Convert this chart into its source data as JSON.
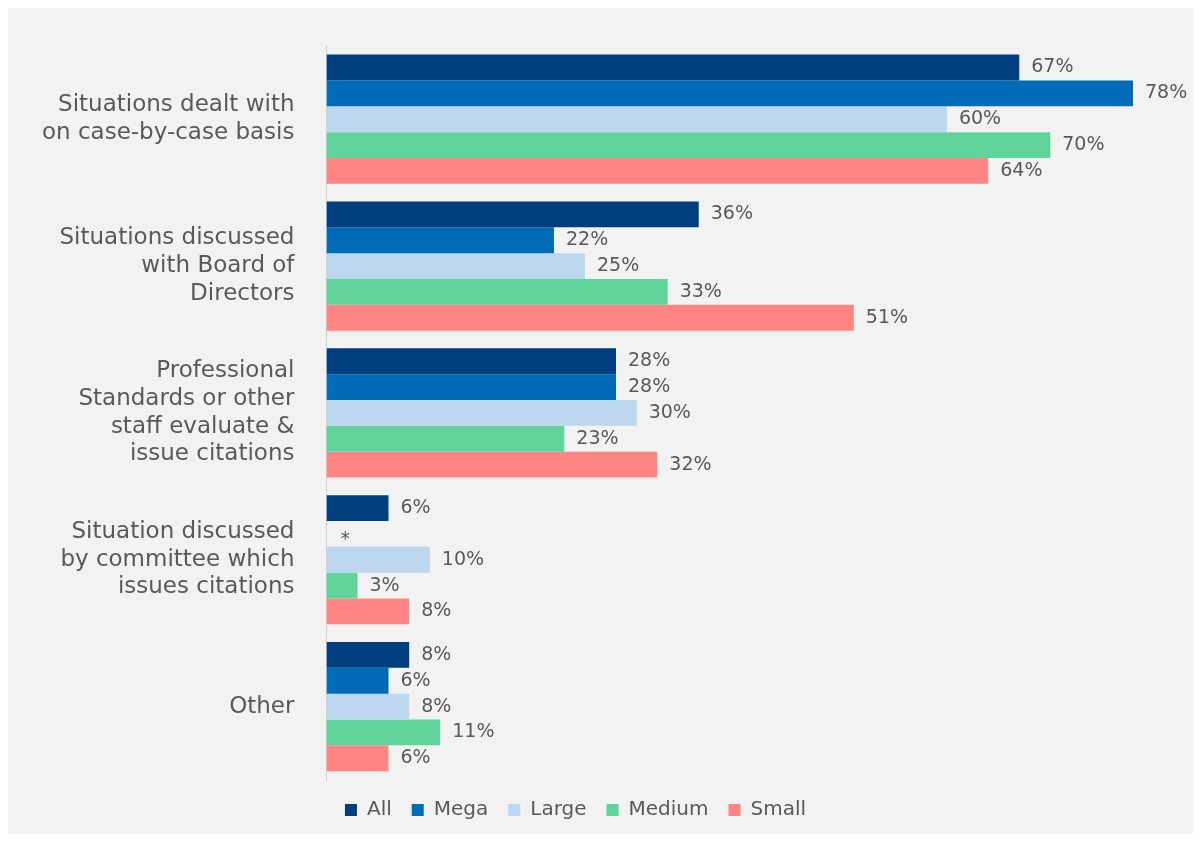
{
  "chart_data": {
    "type": "bar",
    "orientation": "horizontal",
    "categories": [
      "Situations dealt with on case-by-case basis",
      "Situations discussed with Board of Directors",
      "Professional Standards or other staff evaluate & issue citations",
      "Situation discussed by committee which issues citations",
      "Other"
    ],
    "series": [
      {
        "name": "All",
        "color": "#003f7f",
        "values": [
          67,
          36,
          28,
          6,
          8
        ],
        "value_labels": [
          "67%",
          "36%",
          "28%",
          "6%",
          "8%"
        ]
      },
      {
        "name": "Mega",
        "color": "#006bb6",
        "values": [
          78,
          22,
          28,
          null,
          6
        ],
        "value_labels": [
          "78%",
          "22%",
          "28%",
          "*",
          "6%"
        ]
      },
      {
        "name": "Large",
        "color": "#bdd7ee",
        "values": [
          60,
          25,
          30,
          10,
          8
        ],
        "value_labels": [
          "60%",
          "25%",
          "30%",
          "10%",
          "8%"
        ]
      },
      {
        "name": "Medium",
        "color": "#5fd39a",
        "values": [
          70,
          33,
          23,
          3,
          11
        ],
        "value_labels": [
          "70%",
          "33%",
          "23%",
          "3%",
          "11%"
        ]
      },
      {
        "name": "Small",
        "color": "#ff8585",
        "values": [
          64,
          51,
          32,
          8,
          6
        ],
        "value_labels": [
          "64%",
          "51%",
          "32%",
          "8%",
          "6%"
        ]
      }
    ],
    "xlim": [
      0,
      78
    ],
    "tick_labels": "y",
    "legend": "bottom"
  }
}
